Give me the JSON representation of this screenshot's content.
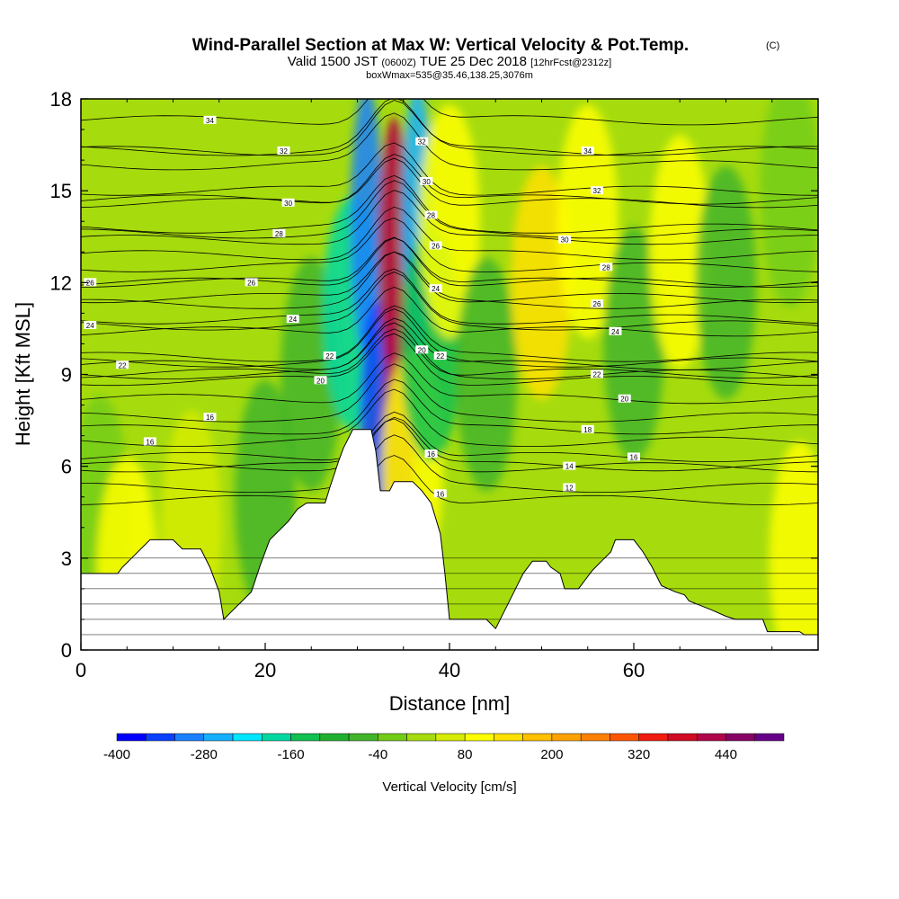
{
  "title": {
    "main": "Wind-Parallel Section at Max W: Vertical Velocity & Pot.Temp.",
    "copyright": "(C)",
    "valid_prefix": "Valid 1500 JST",
    "zulu": "(0600Z)",
    "valid_date": "TUE 25 Dec 2018",
    "forecast": "[12hrFcst@2312z]",
    "box": "boxWmax=535@35.46,138.25,3076m"
  },
  "chart_data": {
    "type": "heatmap",
    "xlabel": "Distance [nm]",
    "ylabel": "Height [Kft MSL]",
    "xlim": [
      0,
      80
    ],
    "ylim": [
      0,
      18
    ],
    "x_ticks": [
      0,
      20,
      40,
      60
    ],
    "y_ticks": [
      0,
      3,
      6,
      9,
      12,
      15,
      18
    ],
    "colorbar": {
      "label": "Vertical Velocity [cm/s]",
      "ticks": [
        -400,
        -280,
        -160,
        -40,
        80,
        200,
        320,
        440
      ],
      "levels": [
        -400,
        -360,
        -320,
        -280,
        -240,
        -200,
        -160,
        -120,
        -80,
        -40,
        0,
        40,
        80,
        120,
        160,
        200,
        240,
        280,
        320,
        360,
        400,
        440,
        480,
        520
      ],
      "colors": [
        "#0000ff",
        "#0a40ff",
        "#1a80ff",
        "#14b0ff",
        "#00e6ff",
        "#00d8a0",
        "#10c050",
        "#20b030",
        "#42b42a",
        "#74cc16",
        "#a6dc0e",
        "#d6ec04",
        "#ffff00",
        "#ffe000",
        "#ffc000",
        "#ffa200",
        "#ff8000",
        "#ff5500",
        "#f01c10",
        "#d00a22",
        "#b0064a",
        "#880066",
        "#660088"
      ]
    },
    "terrain_kft": [
      [
        0,
        2.5
      ],
      [
        4,
        2.5
      ],
      [
        4.5,
        2.7
      ],
      [
        5.5,
        3.0
      ],
      [
        6.5,
        3.3
      ],
      [
        7.5,
        3.6
      ],
      [
        10,
        3.6
      ],
      [
        11,
        3.3
      ],
      [
        13,
        3.3
      ],
      [
        14,
        2.7
      ],
      [
        15,
        1.9
      ],
      [
        15.5,
        1.0
      ],
      [
        16.5,
        1.3
      ],
      [
        17.5,
        1.6
      ],
      [
        18.5,
        1.9
      ],
      [
        19.5,
        2.8
      ],
      [
        20.5,
        3.6
      ],
      [
        21.5,
        3.9
      ],
      [
        22.5,
        4.2
      ],
      [
        23.5,
        4.6
      ],
      [
        24.5,
        4.8
      ],
      [
        26.5,
        4.8
      ],
      [
        27,
        5.3
      ],
      [
        28,
        6.2
      ],
      [
        28.5,
        6.6
      ],
      [
        29,
        6.9
      ],
      [
        29.5,
        7.2
      ],
      [
        31.5,
        7.2
      ],
      [
        32,
        6.5
      ],
      [
        32.5,
        5.2
      ],
      [
        33.5,
        5.2
      ],
      [
        34,
        5.5
      ],
      [
        36,
        5.5
      ],
      [
        37,
        5.2
      ],
      [
        38,
        4.8
      ],
      [
        39,
        3.8
      ],
      [
        39.5,
        2.5
      ],
      [
        40,
        1.0
      ],
      [
        44,
        1.0
      ],
      [
        45,
        0.7
      ],
      [
        47,
        1.9
      ],
      [
        48,
        2.5
      ],
      [
        49,
        2.9
      ],
      [
        50.5,
        2.9
      ],
      [
        51,
        2.7
      ],
      [
        51.5,
        2.6
      ],
      [
        52,
        2.5
      ],
      [
        52.5,
        2.0
      ],
      [
        54,
        2.0
      ],
      [
        55.5,
        2.6
      ],
      [
        56.5,
        2.9
      ],
      [
        57.5,
        3.2
      ],
      [
        58,
        3.6
      ],
      [
        60,
        3.6
      ],
      [
        61,
        3.2
      ],
      [
        62,
        2.7
      ],
      [
        63,
        2.1
      ],
      [
        64.5,
        1.9
      ],
      [
        65.5,
        1.8
      ],
      [
        66,
        1.6
      ],
      [
        68.5,
        1.3
      ],
      [
        70,
        1.1
      ],
      [
        71,
        1.0
      ],
      [
        74,
        1.0
      ],
      [
        74.5,
        0.6
      ],
      [
        78,
        0.6
      ],
      [
        78.5,
        0.5
      ],
      [
        80,
        0.5
      ]
    ],
    "w_field_cms": [
      {
        "x": 2,
        "y": 4.5,
        "w": -20
      },
      {
        "x": 5,
        "y": 2.5,
        "w": 90
      },
      {
        "x": 12,
        "y": 4,
        "w": 50
      },
      {
        "x": 20,
        "y": 5,
        "w": -70
      },
      {
        "x": 25,
        "y": 9,
        "w": -50
      },
      {
        "x": 29.5,
        "y": 11,
        "w": -170
      },
      {
        "x": 31,
        "y": 14,
        "w": -300
      },
      {
        "x": 32,
        "y": 7,
        "w": -330
      },
      {
        "x": 34,
        "y": 13,
        "w": 420
      },
      {
        "x": 34.5,
        "y": 7,
        "w": 420
      },
      {
        "x": 36.5,
        "y": 14,
        "w": -280
      },
      {
        "x": 36,
        "y": 6,
        "w": 100
      },
      {
        "x": 38,
        "y": 10,
        "w": -150
      },
      {
        "x": 40,
        "y": 14,
        "w": 80
      },
      {
        "x": 44,
        "y": 9,
        "w": -60
      },
      {
        "x": 50,
        "y": 12,
        "w": 120
      },
      {
        "x": 55,
        "y": 14,
        "w": 110
      },
      {
        "x": 60,
        "y": 10,
        "w": -60
      },
      {
        "x": 65,
        "y": 13,
        "w": 100
      },
      {
        "x": 70,
        "y": 12,
        "w": -70
      },
      {
        "x": 77,
        "y": 15,
        "w": -40
      },
      {
        "x": 78,
        "y": 3,
        "w": 80
      }
    ],
    "theta_isolines_K": [
      {
        "value": "34",
        "label_x": 14,
        "label_y": 17.3
      },
      {
        "value": "34",
        "label_x": 55,
        "label_y": 16.3
      },
      {
        "value": "32",
        "label_x": 22,
        "label_y": 16.3
      },
      {
        "value": "32",
        "label_x": 37,
        "label_y": 16.6
      },
      {
        "value": "32",
        "label_x": 56,
        "label_y": 15.0
      },
      {
        "value": "30",
        "label_x": 22.5,
        "label_y": 14.6
      },
      {
        "value": "30",
        "label_x": 37.5,
        "label_y": 15.3
      },
      {
        "value": "30",
        "label_x": 52.5,
        "label_y": 13.4
      },
      {
        "value": "28",
        "label_x": 21.5,
        "label_y": 13.6
      },
      {
        "value": "28",
        "label_x": 38,
        "label_y": 14.2
      },
      {
        "value": "28",
        "label_x": 57,
        "label_y": 12.5
      },
      {
        "value": "26",
        "label_x": 1,
        "label_y": 12.0
      },
      {
        "value": "26",
        "label_x": 18.5,
        "label_y": 12.0
      },
      {
        "value": "26",
        "label_x": 38.5,
        "label_y": 13.2
      },
      {
        "value": "26",
        "label_x": 56,
        "label_y": 11.3
      },
      {
        "value": "24",
        "label_x": 1,
        "label_y": 10.6
      },
      {
        "value": "24",
        "label_x": 23,
        "label_y": 10.8
      },
      {
        "value": "24",
        "label_x": 38.5,
        "label_y": 11.8
      },
      {
        "value": "24",
        "label_x": 58,
        "label_y": 10.4
      },
      {
        "value": "22",
        "label_x": 4.5,
        "label_y": 9.3
      },
      {
        "value": "22",
        "label_x": 27,
        "label_y": 9.6
      },
      {
        "value": "22",
        "label_x": 39,
        "label_y": 9.6
      },
      {
        "value": "22",
        "label_x": 56,
        "label_y": 9.0
      },
      {
        "value": "20",
        "label_x": 26,
        "label_y": 8.8
      },
      {
        "value": "20",
        "label_x": 37,
        "label_y": 9.8
      },
      {
        "value": "20",
        "label_x": 59,
        "label_y": 8.2
      },
      {
        "value": "18",
        "label_x": 55,
        "label_y": 7.2
      },
      {
        "value": "16",
        "label_x": 14,
        "label_y": 7.6
      },
      {
        "value": "16",
        "label_x": 7.5,
        "label_y": 6.8
      },
      {
        "value": "16",
        "label_x": 38,
        "label_y": 6.4
      },
      {
        "value": "16",
        "label_x": 39,
        "label_y": 5.1
      },
      {
        "value": "16",
        "label_x": 60,
        "label_y": 6.3
      },
      {
        "value": "14",
        "label_x": 53,
        "label_y": 6.0
      },
      {
        "value": "12",
        "label_x": 53,
        "label_y": 5.3
      }
    ]
  }
}
